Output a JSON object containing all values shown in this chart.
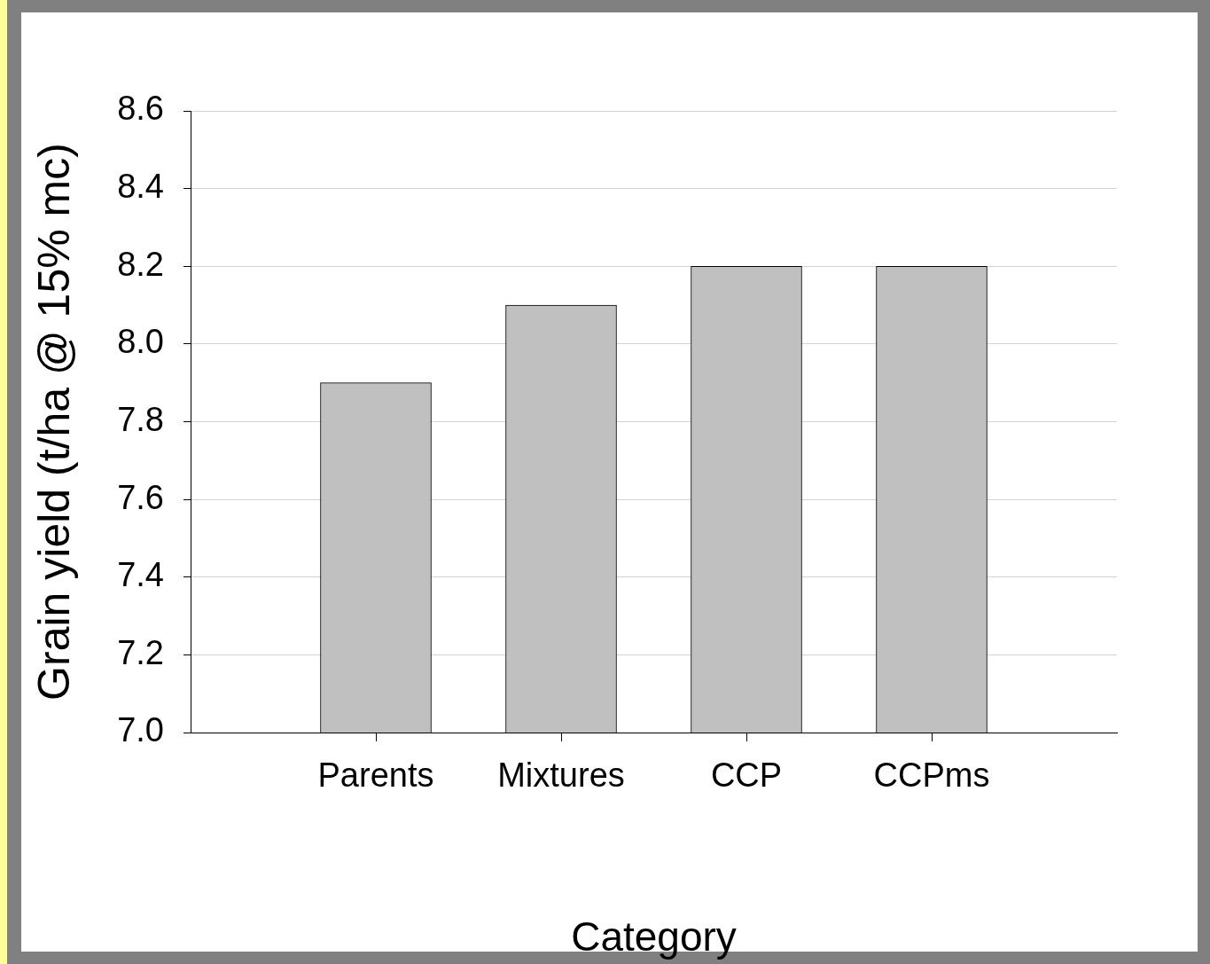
{
  "chart_data": {
    "type": "bar",
    "xlabel": "Category",
    "ylabel": "Grain yield (t/ha @ 15% mc)",
    "categories": [
      "Parents",
      "Mixtures",
      "CCP",
      "CCPms"
    ],
    "values": [
      7.9,
      8.1,
      8.2,
      8.2
    ],
    "color": "#c0c0c0",
    "ylim": [
      7.0,
      8.6
    ],
    "yticks": [
      {
        "value": 7.0,
        "label": "7.0"
      },
      7.2,
      7.4,
      7.6,
      7.8,
      {
        "value": 8.0,
        "label": "8.0"
      },
      8.2,
      8.4,
      8.6
    ],
    "grid": "y",
    "legend": false
  }
}
